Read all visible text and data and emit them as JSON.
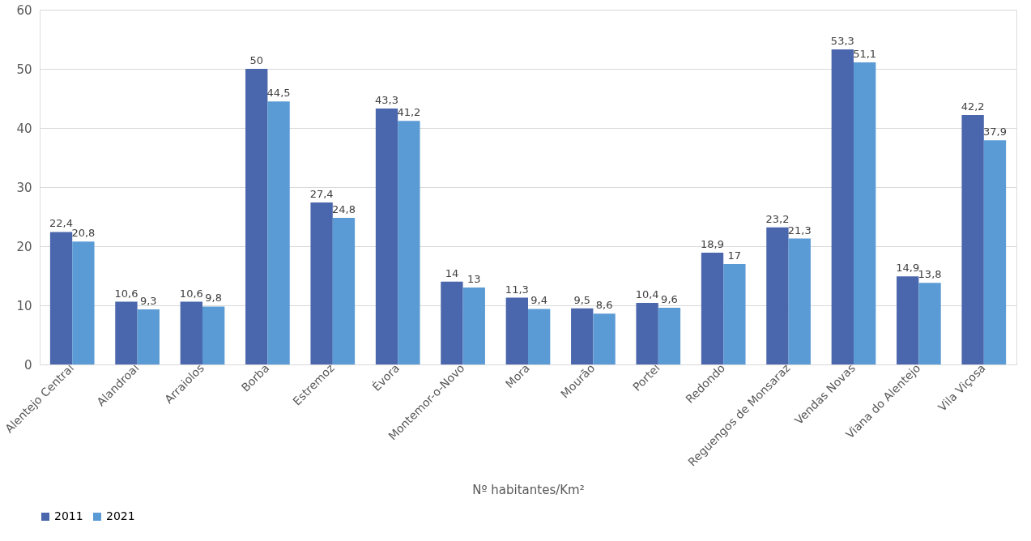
{
  "chart_data": {
    "type": "bar",
    "xlabel": "Nº habitantes/Km²",
    "categories": [
      "Alentejo Central",
      "Alandroal",
      "Arraiolos",
      "Borba",
      "Estremoz",
      "Évora",
      "Montemor-o-Novo",
      "Mora",
      "Mourão",
      "Portel",
      "Redondo",
      "Reguengos de Monsaraz",
      "Vendas Novas",
      "Viana do Alentejo",
      "Vila Viçosa"
    ],
    "series": [
      {
        "name": "2011",
        "color": "#4a66ac",
        "values": [
          22.4,
          10.6,
          10.6,
          50,
          27.4,
          43.3,
          14,
          11.3,
          9.5,
          10.4,
          18.9,
          23.2,
          53.3,
          14.9,
          42.2
        ],
        "value_labels": [
          "22,4",
          "10,6",
          "10,6",
          "50",
          "27,4",
          "43,3",
          "14",
          "11,3",
          "9,5",
          "10,4",
          "18,9",
          "23,2",
          "53,3",
          "14,9",
          "42,2"
        ]
      },
      {
        "name": "2021",
        "color": "#5b9bd5",
        "values": [
          20.8,
          9.3,
          9.8,
          44.5,
          24.8,
          41.2,
          13,
          9.4,
          8.6,
          9.6,
          17,
          21.3,
          51.1,
          13.8,
          37.9
        ],
        "value_labels": [
          "20,8",
          "9,3",
          "9,8",
          "44,5",
          "24,8",
          "41,2",
          "13",
          "9,4",
          "8,6",
          "9,6",
          "17",
          "21,3",
          "51,1",
          "13,8",
          "37,9"
        ]
      }
    ],
    "ylim": [
      0,
      60
    ],
    "yticks": [
      0,
      10,
      20,
      30,
      40,
      50,
      60
    ],
    "grid": "y",
    "legend": "bottom"
  }
}
